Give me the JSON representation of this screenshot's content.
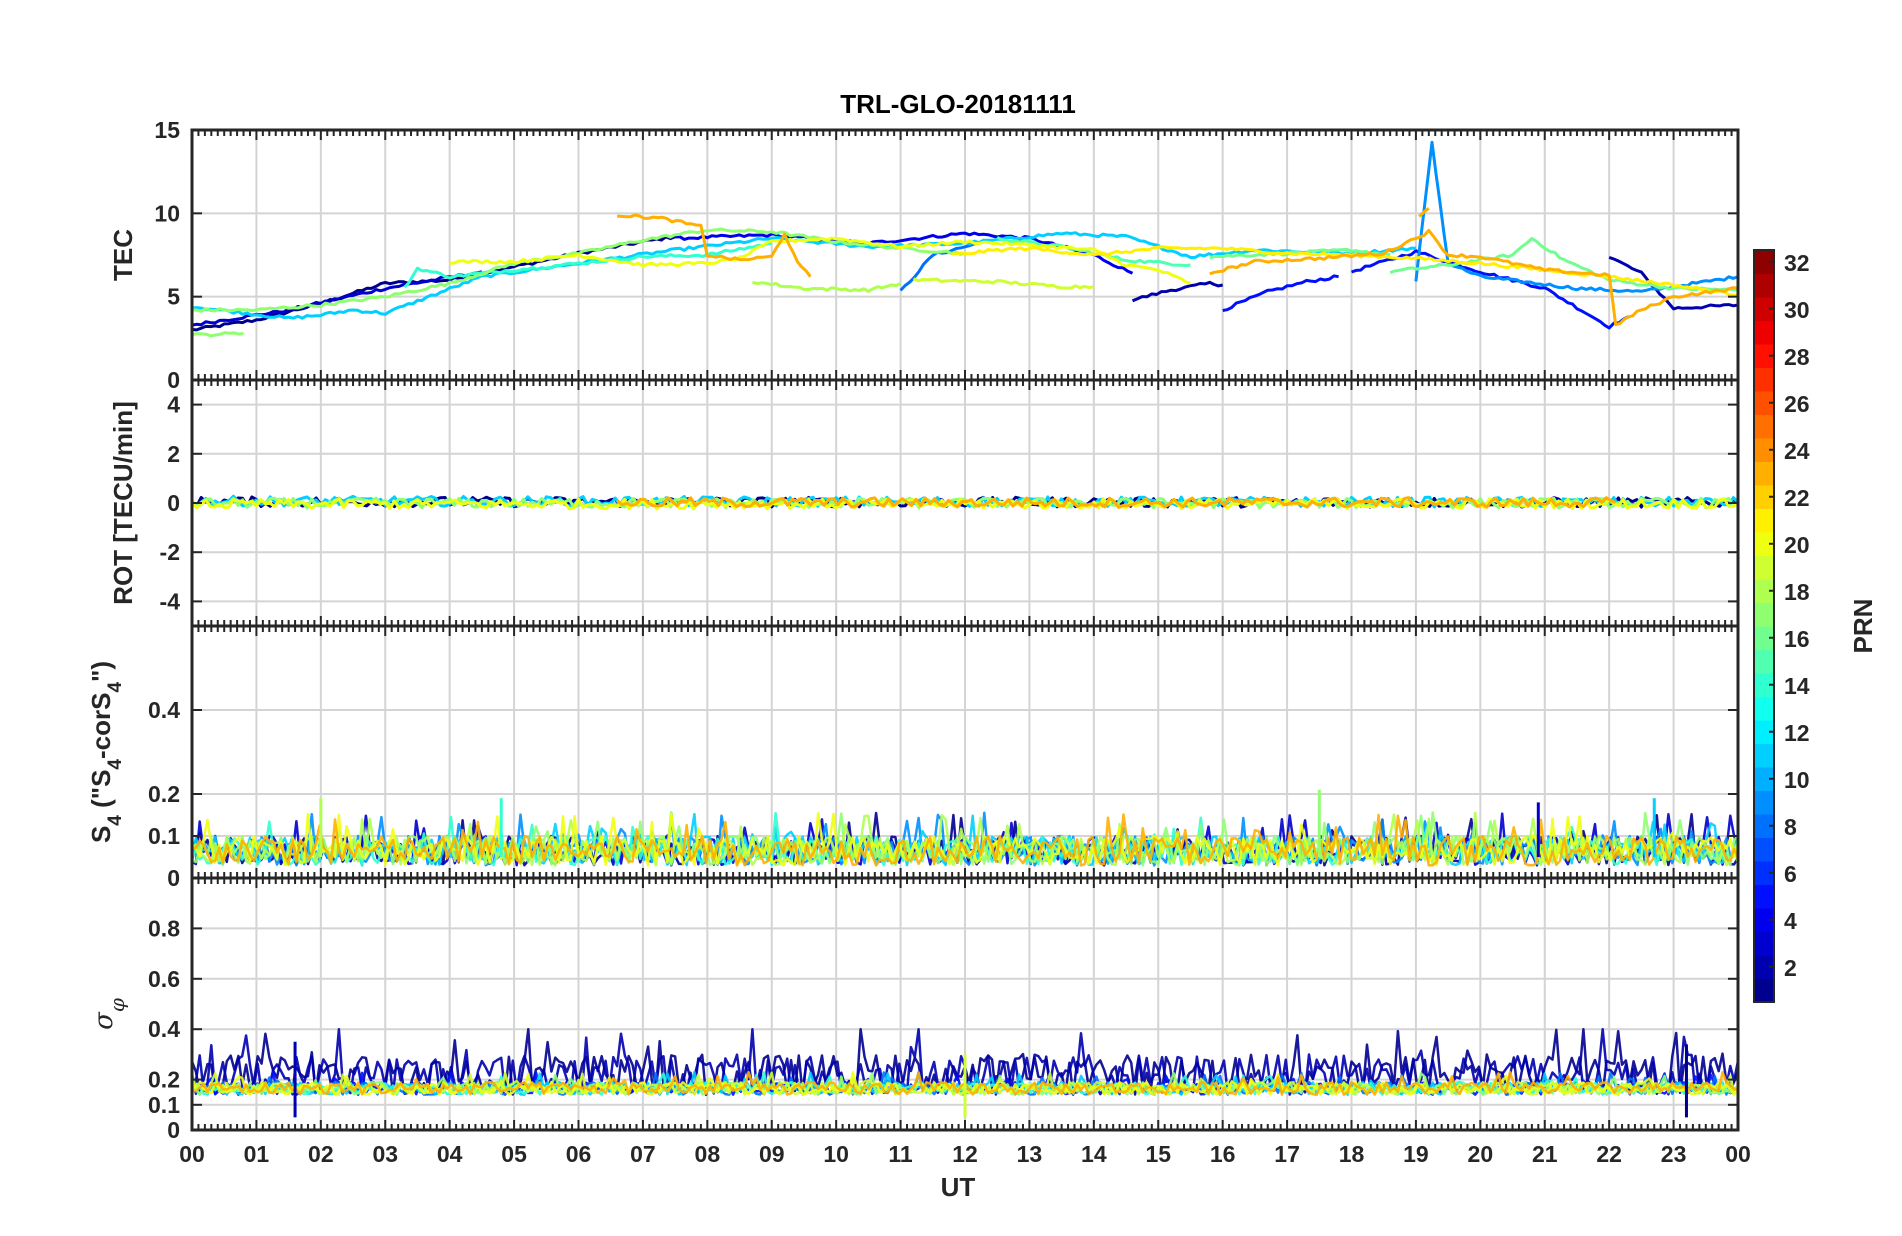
{
  "chart_data": {
    "type": "line",
    "title": "TRL-GLO-20181111",
    "xlabel": "UT",
    "x_tick_labels": [
      "00",
      "01",
      "02",
      "03",
      "04",
      "05",
      "06",
      "07",
      "08",
      "09",
      "10",
      "11",
      "12",
      "13",
      "14",
      "15",
      "16",
      "17",
      "18",
      "19",
      "20",
      "21",
      "22",
      "23",
      "00"
    ],
    "xlim_hours": [
      0,
      24
    ],
    "colorbar": {
      "label": "PRN",
      "range": [
        1,
        32
      ],
      "tick_labels": [
        "2",
        "4",
        "6",
        "8",
        "10",
        "12",
        "14",
        "16",
        "18",
        "20",
        "22",
        "24",
        "26",
        "28",
        "30",
        "32"
      ],
      "colormap": "jet"
    },
    "panels": [
      {
        "name": "tec",
        "ylabel": "TEC",
        "ylim": [
          0,
          15
        ],
        "y_ticks": [
          0,
          5,
          10,
          15
        ],
        "y_tick_labels": [
          "0",
          "5",
          "10",
          "15"
        ],
        "series": [
          {
            "prn": 1,
            "x": [
              0.0,
              1.0,
              2.0,
              3.0,
              4.0,
              5.0,
              6.0,
              7.0,
              7.5
            ],
            "values": [
              3.0,
              3.6,
              4.6,
              5.8,
              6.0,
              6.8,
              7.6,
              8.3,
              8.6
            ]
          },
          {
            "prn": 2,
            "x": [
              14.6,
              15.2,
              15.8,
              16.0
            ],
            "values": [
              4.8,
              5.4,
              5.8,
              5.7
            ]
          },
          {
            "prn": 2,
            "x": [
              22.0,
              22.5,
              23.0,
              24.0
            ],
            "values": [
              7.4,
              6.4,
              4.3,
              4.5
            ]
          },
          {
            "prn": 3,
            "x": [
              0.0,
              1.5,
              3.0,
              4.5
            ],
            "values": [
              3.3,
              4.2,
              5.5,
              6.5
            ]
          },
          {
            "prn": 4,
            "x": [
              7.5,
              9.0,
              10.5,
              12.0,
              13.0,
              14.0,
              14.6
            ],
            "values": [
              8.5,
              8.7,
              8.2,
              8.8,
              8.5,
              7.5,
              6.4
            ]
          },
          {
            "prn": 5,
            "x": [
              16.0,
              16.7,
              17.3,
              17.8
            ],
            "values": [
              4.2,
              5.3,
              5.9,
              6.2
            ]
          },
          {
            "prn": 5,
            "x": [
              18.0,
              19.0,
              20.0,
              21.0,
              22.0,
              22.3
            ],
            "values": [
              6.5,
              7.7,
              6.5,
              5.5,
              3.2,
              3.8
            ]
          },
          {
            "prn": 8,
            "x": [
              11.0,
              11.5,
              12.3
            ],
            "values": [
              5.3,
              7.5,
              8.3
            ]
          },
          {
            "prn": 9,
            "x": [
              19.0,
              19.25,
              19.5,
              20.0,
              21.5,
              22.5,
              24.0
            ],
            "values": [
              6.0,
              14.2,
              7.0,
              6.2,
              5.5,
              5.3,
              6.2
            ]
          },
          {
            "prn": 11,
            "x": [
              0.0,
              1.5,
              2.0,
              2.5,
              3.0,
              4.5,
              6.0,
              7.5,
              9.0,
              10.5,
              12.0,
              13.5,
              14.5,
              15.5,
              16.5,
              18.0,
              19.0
            ],
            "values": [
              4.4,
              3.7,
              3.9,
              4.2,
              4.0,
              6.2,
              7.0,
              7.8,
              8.5,
              8.0,
              8.2,
              8.8,
              8.6,
              7.4,
              7.8,
              7.6,
              7.9
            ]
          },
          {
            "prn": 14,
            "x": [
              3.3,
              3.5,
              4.0,
              5.0,
              6.0,
              7.0,
              8.0,
              9.0
            ],
            "values": [
              5.5,
              6.7,
              6.2,
              6.6,
              7.0,
              7.4,
              7.5,
              8.2
            ]
          },
          {
            "prn": 15,
            "x": [
              12.5,
              13.5,
              14.5,
              15.5
            ],
            "values": [
              8.5,
              8.0,
              7.2,
              6.9
            ]
          },
          {
            "prn": 16,
            "x": [
              15.8,
              17.0,
              18.0,
              18.6
            ],
            "values": [
              7.4,
              7.6,
              7.8,
              7.5
            ]
          },
          {
            "prn": 16,
            "x": [
              18.6,
              19.5,
              20.5,
              20.8,
              21.3,
              22.0,
              23.0,
              24.0
            ],
            "values": [
              6.5,
              6.9,
              7.5,
              8.5,
              7.2,
              6.0,
              5.5,
              5.4
            ]
          },
          {
            "prn": 17,
            "x": [
              0.0,
              1.0,
              2.0,
              3.0,
              4.0,
              5.0,
              6.0,
              7.0,
              8.0,
              9.0,
              10.0,
              11.0,
              12.0
            ],
            "values": [
              4.2,
              4.2,
              4.5,
              5.0,
              5.8,
              7.0,
              7.6,
              8.4,
              9.0,
              8.9,
              8.3,
              7.9,
              7.6
            ]
          },
          {
            "prn": 17,
            "x": [
              0.0,
              0.8
            ],
            "values": [
              2.7,
              2.8
            ]
          },
          {
            "prn": 18,
            "x": [
              8.7,
              9.5,
              10.5,
              11.0
            ],
            "values": [
              5.9,
              5.5,
              5.4,
              5.8
            ]
          },
          {
            "prn": 19,
            "x": [
              11.2,
              12.5,
              13.5,
              14.0
            ],
            "values": [
              6.0,
              5.9,
              5.6,
              5.6
            ]
          },
          {
            "prn": 20,
            "x": [
              4.0,
              5.0,
              6.0,
              6.5,
              7.0,
              8.0,
              8.5,
              9.0,
              10.0,
              11.0,
              12.0,
              13.0,
              14.0,
              14.5,
              15.0,
              15.5
            ],
            "values": [
              7.1,
              7.1,
              7.5,
              7.2,
              6.9,
              7.0,
              7.3,
              8.3,
              8.5,
              8.0,
              8.3,
              8.1,
              7.8,
              6.9,
              6.6,
              5.8
            ]
          },
          {
            "prn": 21,
            "x": [
              11.8,
              12.5,
              13.0,
              14.0,
              15.0,
              16.0,
              17.0,
              18.0,
              19.0,
              20.0,
              21.0,
              22.0,
              23.0,
              24.0
            ],
            "values": [
              7.5,
              7.8,
              7.9,
              7.5,
              7.9,
              7.9,
              7.6,
              7.5,
              7.3,
              7.0,
              6.6,
              6.2,
              5.7,
              5.1
            ]
          },
          {
            "prn": 23,
            "x": [
              6.6,
              7.3,
              7.9,
              8.0,
              8.5,
              9.0,
              9.2,
              9.4,
              9.6
            ],
            "values": [
              9.9,
              9.7,
              9.2,
              7.5,
              7.2,
              7.4,
              8.8,
              7.0,
              6.2
            ]
          },
          {
            "prn": 23,
            "x": [
              15.8,
              16.5,
              17.5,
              18.5,
              19.2,
              19.5,
              20.0,
              21.0,
              22.0,
              22.1,
              22.5,
              23.0,
              24.0
            ],
            "values": [
              6.4,
              7.1,
              7.3,
              7.6,
              8.9,
              7.5,
              7.4,
              6.6,
              6.3,
              3.3,
              4.2,
              5.0,
              5.5
            ]
          },
          {
            "prn": 23,
            "x": [
              19.05,
              19.2
            ],
            "values": [
              9.8,
              10.3
            ]
          }
        ]
      },
      {
        "name": "rot",
        "ylabel": "ROT [TECU/min]",
        "ylim": [
          -5,
          5
        ],
        "y_ticks": [
          -4,
          -2,
          0,
          2,
          4
        ],
        "y_tick_labels": [
          "-4",
          "-2",
          "0",
          "2",
          "4"
        ],
        "series": [
          {
            "prn": 1,
            "x": [
              0.0,
              24.0
            ],
            "values": [
              0.05,
              0.02
            ]
          },
          {
            "prn": 11,
            "x": [
              0.0,
              24.0
            ],
            "values": [
              0.08,
              0.03
            ]
          },
          {
            "prn": 17,
            "x": [
              0.0,
              24.0
            ],
            "values": [
              0.0,
              0.0
            ]
          },
          {
            "prn": 20,
            "x": [
              0.0,
              24.0
            ],
            "values": [
              -0.05,
              -0.02
            ]
          },
          {
            "prn": 23,
            "x": [
              6.6,
              22.1
            ],
            "values": [
              0.02,
              0.02
            ]
          }
        ]
      },
      {
        "name": "s4",
        "ylabel": "S4 (\"S4-corS4\")",
        "ylabel_parts": {
          "base": "S",
          "sub": "4",
          "open": " (\"S",
          "sub2": "4",
          "mid": "-corS",
          "sub3": "4",
          "close": "\")"
        },
        "ylim": [
          0,
          0.6
        ],
        "y_ticks": [
          0,
          0.1,
          0.2,
          0.4
        ],
        "y_tick_labels": [
          "0",
          "0.1",
          "0.2",
          "0.4"
        ],
        "typical_range": [
          0.0,
          0.15
        ],
        "peaks": [
          {
            "prn": 17,
            "x": 17.5,
            "value": 0.21
          },
          {
            "prn": 18,
            "x": 2.0,
            "value": 0.19
          },
          {
            "prn": 14,
            "x": 4.8,
            "value": 0.19
          },
          {
            "prn": 11,
            "x": 22.7,
            "value": 0.19
          },
          {
            "prn": 3,
            "x": 20.9,
            "value": 0.18
          },
          {
            "prn": 20,
            "x": 24.0,
            "value": 0.17
          }
        ]
      },
      {
        "name": "sigma_phi",
        "ylabel": "σφ",
        "ylim": [
          0,
          1
        ],
        "y_ticks": [
          0,
          0.1,
          0.2,
          0.4,
          0.6,
          0.8
        ],
        "y_tick_labels": [
          "0",
          "0.1",
          "0.2",
          "0.4",
          "0.6",
          "0.8"
        ],
        "typical_range": [
          0.1,
          0.35
        ],
        "peaks": [
          {
            "prn": 1,
            "x": 0.0,
            "value": 0.36
          },
          {
            "prn": 2,
            "x": 1.6,
            "value": 0.35
          },
          {
            "prn": 1,
            "x": 23.2,
            "value": 0.34
          },
          {
            "prn": 19,
            "x": 12.0,
            "value": 0.3
          }
        ]
      }
    ]
  }
}
